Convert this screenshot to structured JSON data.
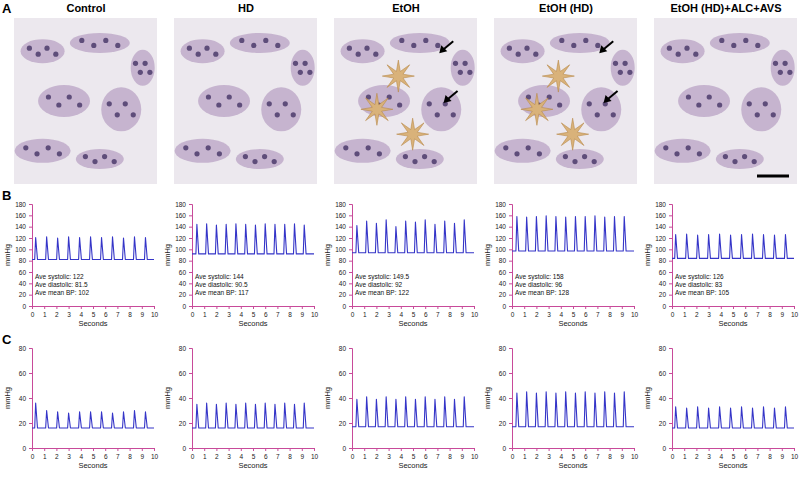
{
  "panel_labels": [
    "A",
    "B",
    "C"
  ],
  "columns": [
    "Control",
    "HD",
    "EtOH",
    "EtOH (HD)",
    "EtOH (HD)+ALC+AVS"
  ],
  "chart_data": [
    {
      "type": "line",
      "x_label": "Seconds",
      "y_label": "mmHg",
      "annotations": [
        "Ave systolic: 122",
        "Ave diastolic: 81.5",
        "Ave mean BP: 102"
      ],
      "x": [
        0,
        0.22,
        0.3,
        0.45,
        1.12,
        1.2,
        1.35,
        2.02,
        2.1,
        2.25,
        2.92,
        3.0,
        3.15,
        3.82,
        3.9,
        4.05,
        4.72,
        4.8,
        4.95,
        5.62,
        5.7,
        5.85,
        6.52,
        6.6,
        6.75,
        7.42,
        7.5,
        7.65,
        8.32,
        8.4,
        8.55,
        9.22,
        9.3,
        9.45,
        10
      ],
      "series": [
        {
          "color": "#3535c8",
          "values": [
            82,
            82,
            121,
            82,
            82,
            122,
            82,
            82,
            120,
            82,
            82,
            122,
            82,
            82,
            121,
            82,
            82,
            122,
            82,
            82,
            121,
            82,
            82,
            122,
            82,
            82,
            120,
            82,
            82,
            122,
            82,
            82,
            121,
            82,
            82
          ]
        }
      ],
      "xlim": [
        0,
        10
      ],
      "xticks": [
        0,
        1,
        2,
        3,
        4,
        5,
        6,
        7,
        8,
        9,
        10
      ],
      "ylim": [
        0,
        180
      ],
      "yticks": [
        0,
        20,
        40,
        60,
        80,
        100,
        120,
        140,
        160,
        180
      ]
    },
    {
      "type": "line",
      "x_label": "Seconds",
      "y_label": "mmHg",
      "annotations": [
        "Ave systolic: 144",
        "Ave diastolic: 90.5",
        "Ave mean BP: 117"
      ],
      "x": [
        0,
        0.32,
        0.4,
        0.55,
        1.12,
        1.2,
        1.35,
        1.92,
        2.0,
        2.15,
        2.72,
        2.8,
        2.95,
        3.52,
        3.6,
        3.75,
        4.32,
        4.4,
        4.55,
        5.12,
        5.2,
        5.35,
        5.92,
        6.0,
        6.15,
        6.72,
        6.8,
        6.95,
        7.52,
        7.6,
        7.75,
        8.32,
        8.4,
        8.55,
        9.12,
        9.2,
        9.35,
        10
      ],
      "series": [
        {
          "color": "#3535c8",
          "values": [
            92,
            92,
            144,
            92,
            92,
            145,
            92,
            92,
            143,
            92,
            92,
            144,
            92,
            92,
            145,
            92,
            92,
            144,
            92,
            92,
            143,
            92,
            92,
            145,
            92,
            92,
            144,
            92,
            92,
            144,
            92,
            92,
            145,
            92,
            92,
            143,
            92,
            92
          ]
        }
      ],
      "xlim": [
        0,
        10
      ],
      "xticks": [
        0,
        1,
        2,
        3,
        4,
        5,
        6,
        7,
        8,
        9,
        10
      ],
      "ylim": [
        0,
        180
      ],
      "yticks": [
        0,
        20,
        40,
        60,
        80,
        100,
        120,
        140,
        160,
        180
      ]
    },
    {
      "type": "line",
      "x_label": "Seconds",
      "y_label": "mmHg",
      "annotations": [
        "Ave systolic: 149.5",
        "Ave diastolic: 92",
        "Ave mean BP: 122"
      ],
      "x": [
        0,
        0.32,
        0.4,
        0.55,
        1.12,
        1.2,
        1.35,
        1.92,
        2.0,
        2.15,
        2.72,
        2.8,
        2.95,
        3.52,
        3.6,
        3.75,
        4.32,
        4.4,
        4.55,
        5.12,
        5.2,
        5.35,
        5.92,
        6.0,
        6.15,
        6.72,
        6.8,
        6.95,
        7.52,
        7.6,
        7.75,
        8.32,
        8.4,
        8.55,
        9.12,
        9.2,
        9.35,
        10
      ],
      "series": [
        {
          "color": "#3535c8",
          "values": [
            94,
            94,
            142,
            94,
            94,
            150,
            94,
            94,
            146,
            94,
            94,
            152,
            94,
            94,
            140,
            94,
            94,
            150,
            94,
            94,
            148,
            94,
            94,
            152,
            94,
            94,
            144,
            94,
            94,
            150,
            94,
            94,
            146,
            94,
            94,
            152,
            94,
            94
          ]
        }
      ],
      "xlim": [
        0,
        10
      ],
      "xticks": [
        0,
        1,
        2,
        3,
        4,
        5,
        6,
        7,
        8,
        9,
        10
      ],
      "ylim": [
        0,
        180
      ],
      "yticks": [
        0,
        20,
        40,
        60,
        80,
        100,
        120,
        140,
        160,
        180
      ]
    },
    {
      "type": "line",
      "x_label": "Seconds",
      "y_label": "mmHg",
      "annotations": [
        "Ave systolic: 158",
        "Ave diastolic: 96",
        "Ave mean BP: 128"
      ],
      "x": [
        0,
        0.32,
        0.4,
        0.55,
        1.12,
        1.2,
        1.35,
        1.92,
        2.0,
        2.15,
        2.72,
        2.8,
        2.95,
        3.52,
        3.6,
        3.75,
        4.32,
        4.4,
        4.55,
        5.12,
        5.2,
        5.35,
        5.92,
        6.0,
        6.15,
        6.72,
        6.8,
        6.95,
        7.52,
        7.6,
        7.75,
        8.32,
        8.4,
        8.55,
        9.12,
        9.2,
        9.35,
        10
      ],
      "series": [
        {
          "color": "#3535c8",
          "values": [
            97,
            97,
            158,
            97,
            97,
            157,
            97,
            97,
            158,
            97,
            97,
            159,
            97,
            97,
            158,
            97,
            97,
            157,
            97,
            97,
            158,
            97,
            97,
            158,
            97,
            97,
            159,
            97,
            97,
            157,
            97,
            97,
            158,
            97,
            97,
            158,
            97,
            97
          ]
        }
      ],
      "xlim": [
        0,
        10
      ],
      "xticks": [
        0,
        1,
        2,
        3,
        4,
        5,
        6,
        7,
        8,
        9,
        10
      ],
      "ylim": [
        0,
        180
      ],
      "yticks": [
        0,
        20,
        40,
        60,
        80,
        100,
        120,
        140,
        160,
        180
      ]
    },
    {
      "type": "line",
      "x_label": "Seconds",
      "y_label": "mmHg",
      "annotations": [
        "Ave systolic: 126",
        "Ave diastolic: 83",
        "Ave mean BP: 105"
      ],
      "x": [
        0,
        0.22,
        0.3,
        0.45,
        1.12,
        1.2,
        1.35,
        2.02,
        2.1,
        2.25,
        2.92,
        3.0,
        3.15,
        3.82,
        3.9,
        4.05,
        4.72,
        4.8,
        4.95,
        5.62,
        5.7,
        5.85,
        6.52,
        6.6,
        6.75,
        7.42,
        7.5,
        7.65,
        8.32,
        8.4,
        8.55,
        9.22,
        9.3,
        9.45,
        10
      ],
      "series": [
        {
          "color": "#3535c8",
          "values": [
            84,
            84,
            126,
            84,
            84,
            127,
            84,
            84,
            125,
            84,
            84,
            126,
            84,
            84,
            127,
            84,
            84,
            125,
            84,
            84,
            126,
            84,
            84,
            127,
            84,
            84,
            126,
            84,
            84,
            125,
            84,
            84,
            126,
            84,
            84
          ]
        }
      ],
      "xlim": [
        0,
        10
      ],
      "xticks": [
        0,
        1,
        2,
        3,
        4,
        5,
        6,
        7,
        8,
        9,
        10
      ],
      "ylim": [
        0,
        180
      ],
      "yticks": [
        0,
        20,
        40,
        60,
        80,
        100,
        120,
        140,
        160,
        180
      ]
    },
    {
      "type": "line",
      "x_label": "Seconds",
      "y_label": "mmHg",
      "x": [
        0,
        0.22,
        0.3,
        0.45,
        1.12,
        1.2,
        1.35,
        2.02,
        2.1,
        2.25,
        2.92,
        3.0,
        3.15,
        3.82,
        3.9,
        4.05,
        4.72,
        4.8,
        4.95,
        5.62,
        5.7,
        5.85,
        6.52,
        6.6,
        6.75,
        7.42,
        7.5,
        7.65,
        8.32,
        8.4,
        8.55,
        9.22,
        9.3,
        9.45,
        10
      ],
      "series": [
        {
          "color": "#3535c8",
          "values": [
            16,
            16,
            36,
            16,
            16,
            30,
            16,
            16,
            29,
            16,
            16,
            28,
            16,
            16,
            29,
            16,
            16,
            29,
            16,
            16,
            29,
            16,
            16,
            28,
            16,
            16,
            29,
            16,
            16,
            30,
            16,
            16,
            29,
            16,
            16
          ]
        }
      ],
      "xlim": [
        0,
        10
      ],
      "xticks": [
        0,
        1,
        2,
        3,
        4,
        5,
        6,
        7,
        8,
        9,
        10
      ],
      "ylim": [
        0,
        80
      ],
      "yticks": [
        0,
        20,
        40,
        60,
        80
      ]
    },
    {
      "type": "line",
      "x_label": "Seconds",
      "y_label": "mmHg",
      "x": [
        0,
        0.32,
        0.4,
        0.55,
        1.12,
        1.2,
        1.35,
        1.92,
        2.0,
        2.15,
        2.72,
        2.8,
        2.95,
        3.52,
        3.6,
        3.75,
        4.32,
        4.4,
        4.55,
        5.12,
        5.2,
        5.35,
        5.92,
        6.0,
        6.15,
        6.72,
        6.8,
        6.95,
        7.52,
        7.6,
        7.75,
        8.32,
        8.4,
        8.55,
        9.12,
        9.2,
        9.35,
        10
      ],
      "series": [
        {
          "color": "#3535c8",
          "values": [
            16,
            16,
            35,
            16,
            16,
            36,
            16,
            16,
            35,
            16,
            16,
            36,
            16,
            16,
            35,
            16,
            16,
            36,
            16,
            16,
            35,
            16,
            16,
            36,
            16,
            16,
            35,
            16,
            16,
            36,
            16,
            16,
            35,
            16,
            16,
            36,
            16,
            16
          ]
        }
      ],
      "xlim": [
        0,
        10
      ],
      "xticks": [
        0,
        1,
        2,
        3,
        4,
        5,
        6,
        7,
        8,
        9,
        10
      ],
      "ylim": [
        0,
        80
      ],
      "yticks": [
        0,
        20,
        40,
        60,
        80
      ]
    },
    {
      "type": "line",
      "x_label": "Seconds",
      "y_label": "mmHg",
      "x": [
        0,
        0.32,
        0.4,
        0.55,
        1.12,
        1.2,
        1.35,
        1.92,
        2.0,
        2.15,
        2.72,
        2.8,
        2.95,
        3.52,
        3.6,
        3.75,
        4.32,
        4.4,
        4.55,
        5.12,
        5.2,
        5.35,
        5.92,
        6.0,
        6.15,
        6.72,
        6.8,
        6.95,
        7.52,
        7.6,
        7.75,
        8.32,
        8.4,
        8.55,
        9.12,
        9.2,
        9.35,
        10
      ],
      "series": [
        {
          "color": "#3535c8",
          "values": [
            17,
            17,
            39,
            17,
            17,
            41,
            17,
            17,
            39,
            17,
            17,
            41,
            17,
            17,
            39,
            17,
            17,
            41,
            17,
            17,
            39,
            17,
            17,
            41,
            17,
            17,
            39,
            17,
            17,
            41,
            17,
            17,
            39,
            17,
            17,
            41,
            17,
            17
          ]
        }
      ],
      "xlim": [
        0,
        10
      ],
      "xticks": [
        0,
        1,
        2,
        3,
        4,
        5,
        6,
        7,
        8,
        9,
        10
      ],
      "ylim": [
        0,
        80
      ],
      "yticks": [
        0,
        20,
        40,
        60,
        80
      ]
    },
    {
      "type": "line",
      "x_label": "Seconds",
      "y_label": "mmHg",
      "x": [
        0,
        0.32,
        0.4,
        0.55,
        1.12,
        1.2,
        1.35,
        1.92,
        2.0,
        2.15,
        2.72,
        2.8,
        2.95,
        3.52,
        3.6,
        3.75,
        4.32,
        4.4,
        4.55,
        5.12,
        5.2,
        5.35,
        5.92,
        6.0,
        6.15,
        6.72,
        6.8,
        6.95,
        7.52,
        7.6,
        7.75,
        8.32,
        8.4,
        8.55,
        9.12,
        9.2,
        9.35,
        10
      ],
      "series": [
        {
          "color": "#3535c8",
          "values": [
            17,
            17,
            44,
            17,
            17,
            45,
            17,
            17,
            44,
            17,
            17,
            45,
            17,
            17,
            44,
            17,
            17,
            45,
            17,
            17,
            44,
            17,
            17,
            45,
            17,
            17,
            44,
            17,
            17,
            45,
            17,
            17,
            44,
            17,
            17,
            45,
            17,
            17
          ]
        }
      ],
      "xlim": [
        0,
        10
      ],
      "xticks": [
        0,
        1,
        2,
        3,
        4,
        5,
        6,
        7,
        8,
        9,
        10
      ],
      "ylim": [
        0,
        80
      ],
      "yticks": [
        0,
        20,
        40,
        60,
        80
      ]
    },
    {
      "type": "line",
      "x_label": "Seconds",
      "y_label": "mmHg",
      "x": [
        0,
        0.22,
        0.3,
        0.45,
        1.12,
        1.2,
        1.35,
        2.02,
        2.1,
        2.25,
        2.92,
        3.0,
        3.15,
        3.82,
        3.9,
        4.05,
        4.72,
        4.8,
        4.95,
        5.62,
        5.7,
        5.85,
        6.52,
        6.6,
        6.75,
        7.42,
        7.5,
        7.65,
        8.32,
        8.4,
        8.55,
        9.22,
        9.3,
        9.45,
        10
      ],
      "series": [
        {
          "color": "#3535c8",
          "values": [
            16,
            16,
            33,
            16,
            16,
            32,
            16,
            16,
            33,
            16,
            16,
            32,
            16,
            16,
            33,
            16,
            16,
            32,
            16,
            16,
            33,
            16,
            16,
            32,
            16,
            16,
            33,
            16,
            16,
            32,
            16,
            16,
            33,
            16,
            16
          ]
        }
      ],
      "xlim": [
        0,
        10
      ],
      "xticks": [
        0,
        1,
        2,
        3,
        4,
        5,
        6,
        7,
        8,
        9,
        10
      ],
      "ylim": [
        0,
        80
      ],
      "yticks": [
        0,
        20,
        40,
        60,
        80
      ]
    }
  ]
}
